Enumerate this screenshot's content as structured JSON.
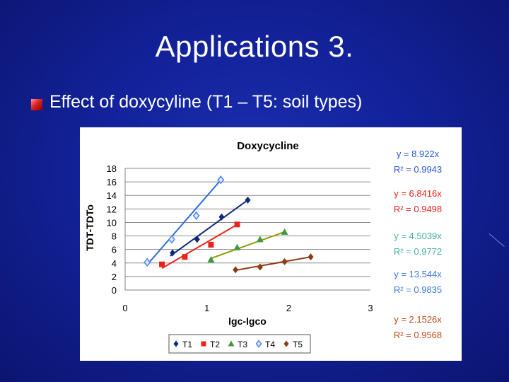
{
  "slide": {
    "title": "Applications 3.",
    "bullet": "Effect of doxycyline (T1 – T5: soil types)"
  },
  "chart_data": {
    "type": "scatter",
    "title": "Doxycycline",
    "xlabel": "lgc-lgco",
    "ylabel": "TDT-TDTo",
    "xlim": [
      0,
      3
    ],
    "ylim": [
      0,
      18
    ],
    "xticks": [
      0,
      1,
      2,
      3
    ],
    "yticks": [
      0,
      2,
      4,
      6,
      8,
      10,
      12,
      14,
      16,
      18
    ],
    "grid": true,
    "legend_placement": "bottom",
    "series": [
      {
        "name": "T1",
        "color": "#0d2a7a",
        "marker": "diamond",
        "line_color": "#0d2a7a",
        "x": [
          0.58,
          0.88,
          1.18,
          1.5
        ],
        "y": [
          5.5,
          7.5,
          10.8,
          13.3
        ],
        "fit": {
          "x0": 0.55,
          "x1": 1.5,
          "slope": 8.922
        },
        "equation": "y = 8.922x",
        "r2": "R² = 0.9943",
        "label_color": "#2a56d6"
      },
      {
        "name": "T2",
        "color": "#e8241c",
        "marker": "square",
        "line_color": "#e8241c",
        "x": [
          0.45,
          0.73,
          1.05,
          1.37
        ],
        "y": [
          3.8,
          4.9,
          6.7,
          9.7
        ],
        "fit": {
          "x0": 0.45,
          "x1": 1.37,
          "slope": 6.8416
        },
        "equation": "y = 6.8416x",
        "r2": "R² = 0.9498",
        "label_color": "#e8241c"
      },
      {
        "name": "T3",
        "color": "#3f9a3f",
        "marker": "triangle",
        "line_color": "#9a9a10",
        "x": [
          1.05,
          1.37,
          1.65,
          1.95
        ],
        "y": [
          4.5,
          6.3,
          7.5,
          8.6
        ],
        "fit": {
          "x0": 1.05,
          "x1": 1.95,
          "slope": 4.5039
        },
        "equation": "y = 4.5039x",
        "r2": "R² = 0.9772",
        "label_color": "#46b0a0"
      },
      {
        "name": "T4",
        "color": "#4f86e8",
        "marker": "diamond-open",
        "line_color": "#2f6ee0",
        "x": [
          0.27,
          0.57,
          0.87,
          1.17
        ],
        "y": [
          4.1,
          7.5,
          11.0,
          16.3
        ],
        "fit": {
          "x0": 0.27,
          "x1": 1.17,
          "slope": 13.544
        },
        "equation": "y = 13.544x",
        "r2": "R² = 0.9835",
        "label_color": "#3a7ae0"
      },
      {
        "name": "T5",
        "color": "#8b3a12",
        "marker": "diamond",
        "line_color": "#8b3a12",
        "x": [
          1.35,
          1.65,
          1.95,
          2.27
        ],
        "y": [
          3.0,
          3.4,
          4.2,
          4.9
        ],
        "fit": {
          "x0": 1.35,
          "x1": 2.27,
          "slope": 2.1526
        },
        "equation": "y = 2.1526x",
        "r2": "R² = 0.9568",
        "label_color": "#c24a18"
      }
    ]
  }
}
